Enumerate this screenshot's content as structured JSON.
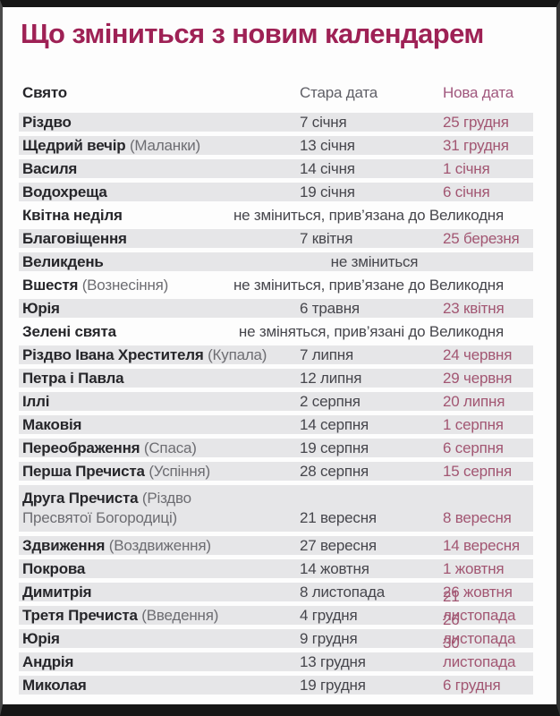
{
  "chart_data": {
    "type": "table",
    "title": "Що зміниться з новим календарем",
    "columns": [
      "Свято",
      "Стара дата",
      "Нова дата"
    ],
    "rows": [
      {
        "holiday": "Різдво",
        "alt_name": "",
        "old_date": "7 січня",
        "new_date": "25 грудня",
        "shaded": true
      },
      {
        "holiday": "Щедрий вечір",
        "alt_name": "(Маланки)",
        "old_date": "13 січня",
        "new_date": "31 грудня",
        "shaded": true
      },
      {
        "holiday": "Василя",
        "alt_name": "",
        "old_date": "14 січня",
        "new_date": "1 січня",
        "shaded": true
      },
      {
        "holiday": "Водохреща",
        "alt_name": "",
        "old_date": "19 січня",
        "new_date": "6 січня",
        "shaded": true
      },
      {
        "holiday": "Квітна неділя",
        "alt_name": "",
        "note": "не зміниться, прив’язана до Великодня",
        "note_align": "right",
        "shaded": false
      },
      {
        "holiday": "Благовіщення",
        "alt_name": "",
        "old_date": "7 квітня",
        "new_date": "25 березня",
        "shaded": true
      },
      {
        "holiday": "Великдень",
        "alt_name": "",
        "note": "не зміниться",
        "note_align": "center",
        "shaded": true
      },
      {
        "holiday": "Вшестя",
        "alt_name": "(Вознесіння)",
        "note": "не зміниться, прив’язане до Великодня",
        "note_align": "right",
        "shaded": false
      },
      {
        "holiday": "Юрія",
        "alt_name": "",
        "old_date": "6 травня",
        "new_date": "23 квітня",
        "shaded": true
      },
      {
        "holiday": "Зелені свята",
        "alt_name": "",
        "note": "не зміняться, прив’язані до Великодня",
        "note_align": "right",
        "shaded": false
      },
      {
        "holiday": "Різдво Івана Хрестителя",
        "alt_name": "(Купала)",
        "old_date": "7 липня",
        "new_date": "24 червня",
        "shaded": true
      },
      {
        "holiday": "Петра і Павла",
        "alt_name": "",
        "old_date": "12 липня",
        "new_date": "29 червня",
        "shaded": true
      },
      {
        "holiday": "Іллі",
        "alt_name": "",
        "old_date": "2 серпня",
        "new_date": "20 липня",
        "shaded": true
      },
      {
        "holiday": "Маковія",
        "alt_name": "",
        "old_date": "14 серпня",
        "new_date": "1 серпня",
        "shaded": true
      },
      {
        "holiday": "Переображення",
        "alt_name": "(Спаса)",
        "old_date": "19 серпня",
        "new_date": "6 серпня",
        "shaded": true
      },
      {
        "holiday": "Перша Пречиста",
        "alt_name": "(Успіння)",
        "old_date": "28 серпня",
        "new_date": "15 серпня",
        "shaded": true
      },
      {
        "holiday": "Друга Пречиста",
        "alt_name": "(Різдво Пресвятої Богородиці)",
        "old_date": "21 вересня",
        "new_date": "8 вересня",
        "shaded": true,
        "tall": true
      },
      {
        "holiday": "Здвиження",
        "alt_name": "(Воздвиження)",
        "old_date": "27 вересня",
        "new_date": "14 вересня",
        "shaded": true
      },
      {
        "holiday": "Покрова",
        "alt_name": "",
        "old_date": "14 жовтня",
        "new_date": "1 жовтня",
        "shaded": true
      },
      {
        "holiday": "Димитрія",
        "alt_name": "",
        "old_date": "8 листопада",
        "new_date": "26 жовтня",
        "shaded": true
      },
      {
        "holiday": "Третя Пречиста",
        "alt_name": "(Введення)",
        "old_date": "4 грудня",
        "new_date": "21 листопада",
        "shaded": true
      },
      {
        "holiday": "Юрія",
        "alt_name": "",
        "old_date": "9 грудня",
        "new_date": "26 листопада",
        "shaded": true
      },
      {
        "holiday": "Андрія",
        "alt_name": "",
        "old_date": "13 грудня",
        "new_date": "30 листопада",
        "shaded": true
      },
      {
        "holiday": "Миколая",
        "alt_name": "",
        "old_date": "19 грудня",
        "new_date": "6 грудня",
        "shaded": true
      }
    ]
  },
  "colors": {
    "title": "#9e2155",
    "header_old": "#5f5f66",
    "header_new": "#a0577d",
    "holiday": "#26262a",
    "alt_name": "#6d6d72",
    "old_date": "#46464c",
    "new_date": "#a25672",
    "stripe": "#e6e6e8",
    "frame": "#161616",
    "background": "#fdfdfd"
  }
}
